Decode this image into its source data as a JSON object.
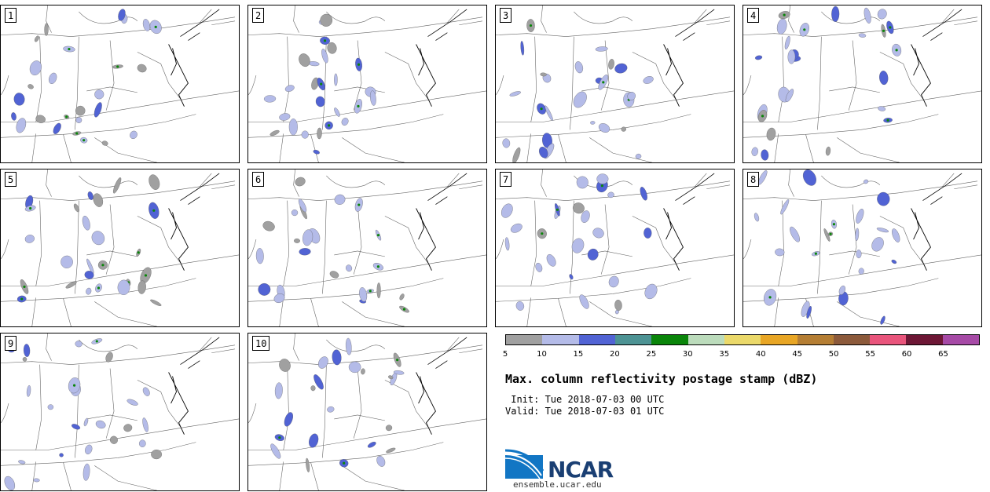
{
  "panels": [
    {
      "label": "1"
    },
    {
      "label": "2"
    },
    {
      "label": "3"
    },
    {
      "label": "4"
    },
    {
      "label": "5"
    },
    {
      "label": "6"
    },
    {
      "label": "7"
    },
    {
      "label": "8"
    },
    {
      "label": "9"
    },
    {
      "label": "10"
    }
  ],
  "colorbar": {
    "colors": [
      "#a0a0a0",
      "#b4bbe8",
      "#5163d4",
      "#4d9394",
      "#0a850a",
      "#bcdcbc",
      "#ebd96a",
      "#e8a625",
      "#b57e34",
      "#8c5a3b",
      "#e9557c",
      "#6d1735",
      "#a64aa6"
    ],
    "ticks": [
      "5",
      "10",
      "15",
      "20",
      "25",
      "30",
      "35",
      "40",
      "45",
      "50",
      "55",
      "60",
      "65"
    ]
  },
  "title": "Max. column reflectivity postage stamp (dBZ)",
  "init_line": " Init: Tue 2018-07-03 00 UTC",
  "valid_line": "Valid: Tue 2018-07-03 01 UTC",
  "logo_text": "NCAR",
  "url": "ensemble.ucar.edu"
}
